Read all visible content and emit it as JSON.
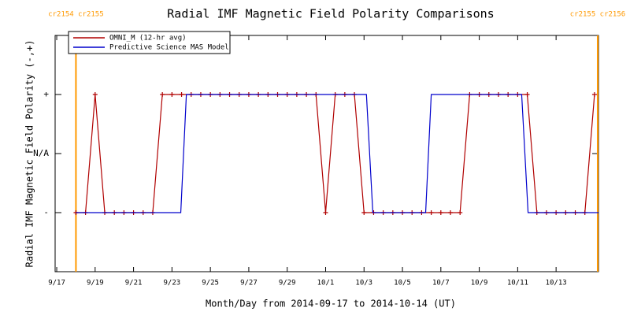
{
  "chart_data": {
    "type": "line",
    "title": "Radial IMF Magnetic Field Polarity Comparisons",
    "x_label": "Month/Day from 2014-09-17 to 2014-10-14 (UT)",
    "y_label": "Radial IMF Magnetic Field Polarity (-,+)",
    "xlim": [
      "2014-09-16T22:00",
      "2014-10-15T05:00"
    ],
    "xticks": [
      {
        "value": "2014-09-17T00:00",
        "label": "9/17"
      },
      {
        "value": "2014-09-19T00:00",
        "label": "9/19"
      },
      {
        "value": "2014-09-21T00:00",
        "label": "9/21"
      },
      {
        "value": "2014-09-23T00:00",
        "label": "9/23"
      },
      {
        "value": "2014-09-25T00:00",
        "label": "9/25"
      },
      {
        "value": "2014-09-27T00:00",
        "label": "9/27"
      },
      {
        "value": "2014-09-29T00:00",
        "label": "9/29"
      },
      {
        "value": "2014-10-01T00:00",
        "label": "10/1"
      },
      {
        "value": "2014-10-03T00:00",
        "label": "10/3"
      },
      {
        "value": "2014-10-05T00:00",
        "label": "10/5"
      },
      {
        "value": "2014-10-07T00:00",
        "label": "10/7"
      },
      {
        "value": "2014-10-09T00:00",
        "label": "10/9"
      },
      {
        "value": "2014-10-11T00:00",
        "label": "10/11"
      },
      {
        "value": "2014-10-13T00:00",
        "label": "10/13"
      }
    ],
    "ylim": [
      -2,
      2
    ],
    "yticks": [
      {
        "value": -1,
        "label": "-"
      },
      {
        "value": 0,
        "label": "N/A"
      },
      {
        "value": 1,
        "label": "+"
      }
    ],
    "legend": "upper left",
    "annotations": [
      {
        "text": "cr2154 cr2155",
        "x": "2014-09-18T00:00",
        "color": "#ff9900"
      },
      {
        "text": "cr2155 cr2156",
        "x": "2014-10-15T04:00",
        "color": "#ff9900"
      }
    ],
    "series": [
      {
        "name": "OMNI_M (12-hr avg)",
        "color": "#b00000",
        "marker": "+",
        "x": [
          "2014-09-18T00:00",
          "2014-09-18T12:00",
          "2014-09-19T00:00",
          "2014-09-19T12:00",
          "2014-09-20T00:00",
          "2014-09-20T12:00",
          "2014-09-21T00:00",
          "2014-09-21T12:00",
          "2014-09-22T00:00",
          "2014-09-22T12:00",
          "2014-09-23T00:00",
          "2014-09-23T12:00",
          "2014-09-24T00:00",
          "2014-09-24T12:00",
          "2014-09-25T00:00",
          "2014-09-25T12:00",
          "2014-09-26T00:00",
          "2014-09-26T12:00",
          "2014-09-27T00:00",
          "2014-09-27T12:00",
          "2014-09-28T00:00",
          "2014-09-28T12:00",
          "2014-09-29T00:00",
          "2014-09-29T12:00",
          "2014-09-30T00:00",
          "2014-09-30T12:00",
          "2014-10-01T00:00",
          "2014-10-01T12:00",
          "2014-10-02T00:00",
          "2014-10-02T12:00",
          "2014-10-03T00:00",
          "2014-10-03T12:00",
          "2014-10-04T00:00",
          "2014-10-04T12:00",
          "2014-10-05T00:00",
          "2014-10-05T12:00",
          "2014-10-06T00:00",
          "2014-10-06T12:00",
          "2014-10-07T00:00",
          "2014-10-07T12:00",
          "2014-10-08T00:00",
          "2014-10-08T12:00",
          "2014-10-09T00:00",
          "2014-10-09T12:00",
          "2014-10-10T00:00",
          "2014-10-10T12:00",
          "2014-10-11T00:00",
          "2014-10-11T12:00",
          "2014-10-12T00:00",
          "2014-10-12T12:00",
          "2014-10-13T00:00",
          "2014-10-13T12:00",
          "2014-10-14T00:00",
          "2014-10-14T12:00",
          "2014-10-15T00:00"
        ],
        "values": [
          -1,
          -1,
          1,
          -1,
          -1,
          -1,
          -1,
          -1,
          -1,
          1,
          1,
          1,
          1,
          1,
          1,
          1,
          1,
          1,
          1,
          1,
          1,
          1,
          1,
          1,
          1,
          1,
          -1,
          1,
          1,
          1,
          -1,
          -1,
          -1,
          -1,
          -1,
          -1,
          -1,
          -1,
          -1,
          -1,
          -1,
          1,
          1,
          1,
          1,
          1,
          1,
          1,
          -1,
          -1,
          -1,
          -1,
          -1,
          -1,
          1
        ]
      },
      {
        "name": "Predictive Science MAS Model",
        "color": "#0000cc",
        "x": [
          "2014-09-18T00:00",
          "2014-09-23T11:00",
          "2014-09-23T18:00",
          "2014-10-03T03:00",
          "2014-10-03T11:00",
          "2014-10-06T05:00",
          "2014-10-06T12:00",
          "2014-10-11T05:00",
          "2014-10-11T13:00",
          "2014-10-15T05:00"
        ],
        "values": [
          -1,
          -1,
          1,
          1,
          -1,
          -1,
          1,
          1,
          -1,
          -1
        ]
      }
    ]
  }
}
